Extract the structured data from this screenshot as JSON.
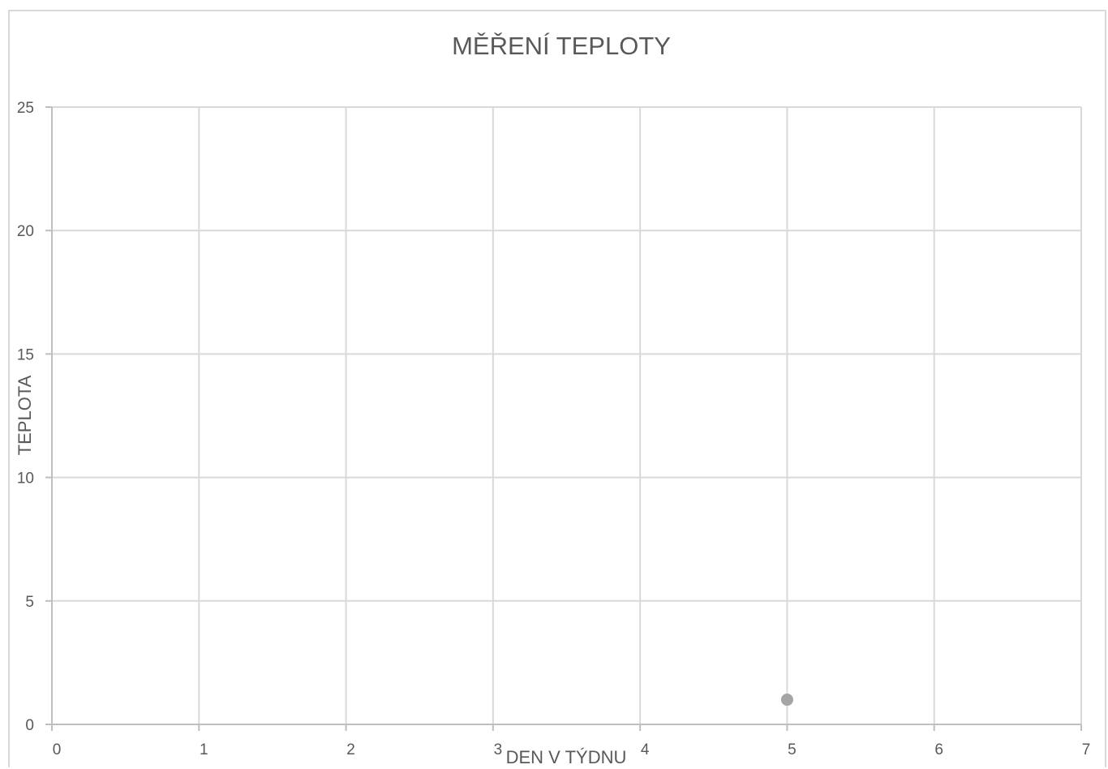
{
  "chart_data": {
    "type": "scatter",
    "title": "MĚŘENÍ  TEPLOTY",
    "xlabel": "DEN  V   TÝDNU",
    "ylabel": "TEPLOTA",
    "xlim": [
      0,
      7
    ],
    "ylim": [
      0,
      25
    ],
    "x_ticks": [
      0,
      1,
      2,
      3,
      4,
      5,
      6,
      7
    ],
    "y_ticks": [
      0,
      5,
      10,
      15,
      20,
      25
    ],
    "grid": true,
    "legend": "none",
    "series": [
      {
        "color": "#a5a5a5",
        "points": [
          {
            "x": 5,
            "y": 1
          }
        ]
      }
    ]
  }
}
